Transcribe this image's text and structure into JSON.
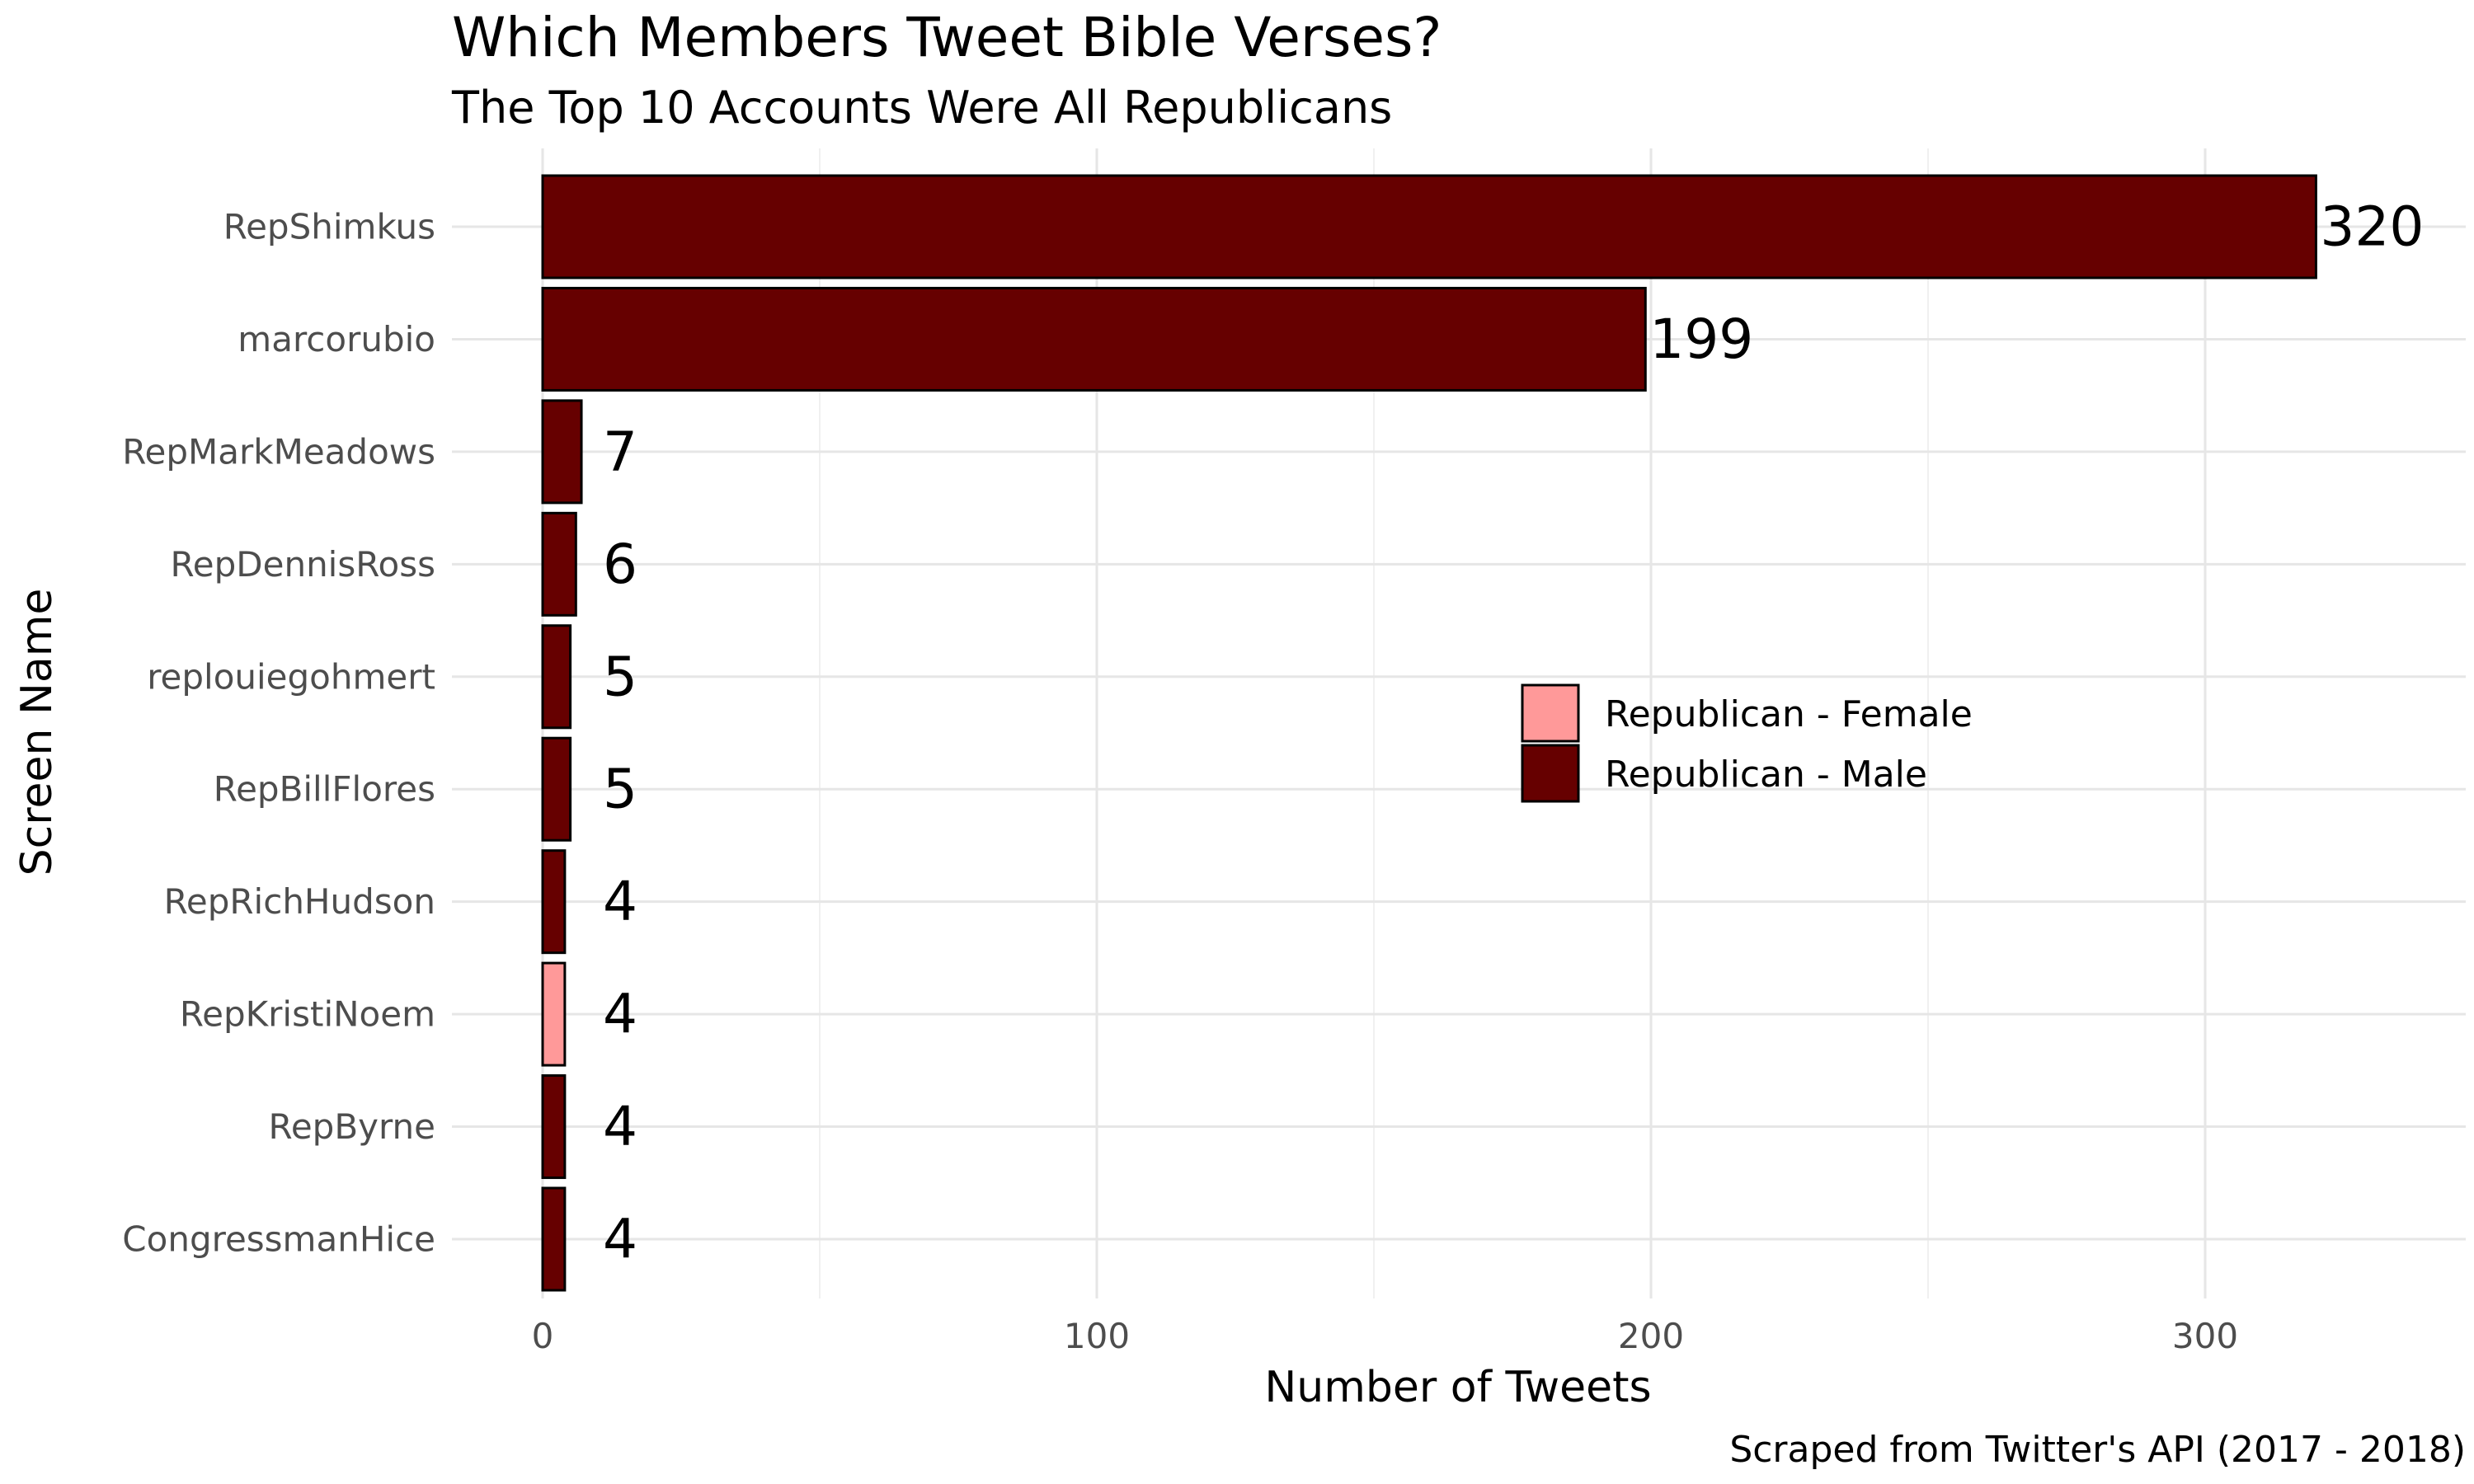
{
  "chart_data": {
    "type": "bar",
    "orientation": "horizontal",
    "title": "Which Members Tweet Bible Verses?",
    "subtitle": "The Top 10 Accounts Were All Republicans",
    "xlabel": "Number of Tweets",
    "ylabel": "Screen Name",
    "caption": "Scraped from Twitter's API (2017 - 2018)",
    "xlim": [
      0,
      345
    ],
    "xticks": [
      0,
      100,
      200,
      300
    ],
    "grid": true,
    "legend_position": "right-center (inside plot)",
    "categories": [
      "RepShimkus",
      "marcorubio",
      "RepMarkMeadows",
      "RepDennisRoss",
      "replouiegohmert",
      "RepBillFlores",
      "RepRichHudson",
      "RepKristiNoem",
      "RepByrne",
      "CongressmanHice"
    ],
    "values": [
      320,
      199,
      7,
      6,
      5,
      5,
      4,
      4,
      4,
      4
    ],
    "groups": [
      "Republican - Male",
      "Republican - Male",
      "Republican - Male",
      "Republican - Male",
      "Republican - Male",
      "Republican - Male",
      "Republican - Male",
      "Republican - Female",
      "Republican - Male",
      "Republican - Male"
    ],
    "legend": [
      {
        "label": "Republican - Female",
        "color": "#ff9999"
      },
      {
        "label": "Republican - Male",
        "color": "#660000"
      }
    ]
  }
}
